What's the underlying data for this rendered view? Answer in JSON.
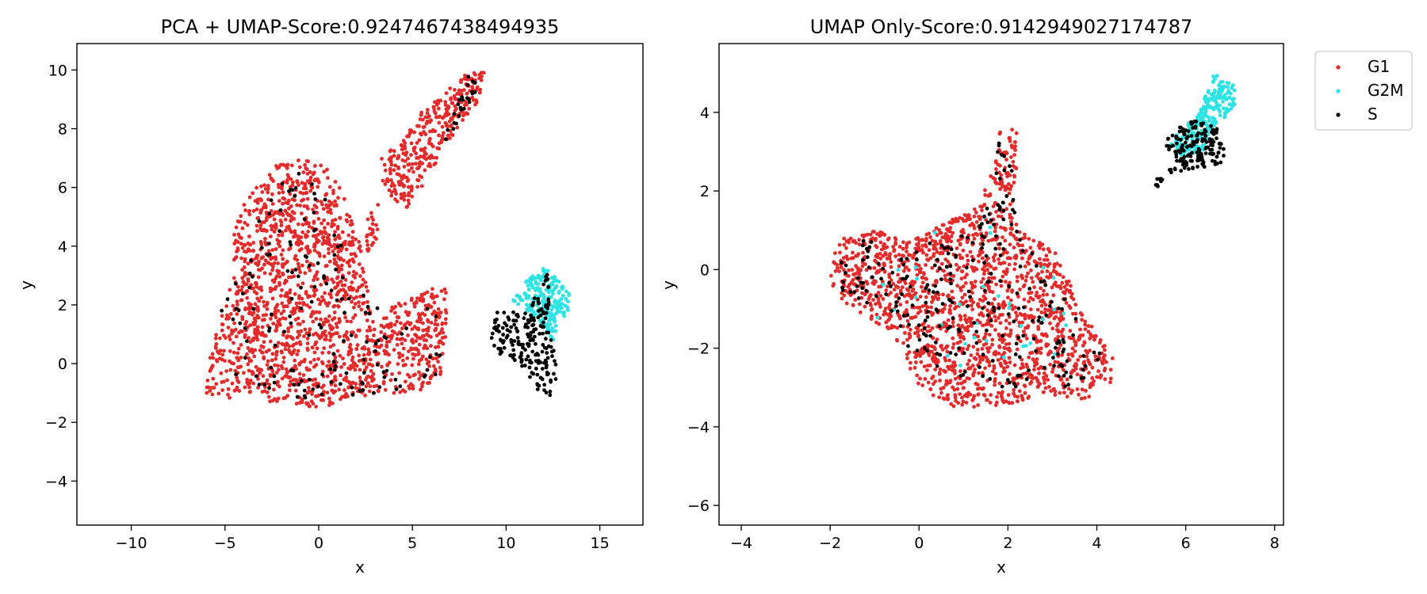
{
  "colors": {
    "G1": "#e42b2b",
    "G2M": "#2de3e3",
    "S": "#000000"
  },
  "legend": {
    "placement": "upper-right-outside",
    "items": [
      "G1",
      "G2M",
      "S"
    ]
  },
  "chart_data": [
    {
      "type": "scatter",
      "title": "PCA + UMAP-Score:0.9247467438494935",
      "xlabel": "x",
      "ylabel": "y",
      "xlim": [
        -12.9,
        17.3
      ],
      "ylim": [
        -5.5,
        10.9
      ],
      "xticks": [
        -10,
        -5,
        0,
        5,
        10,
        15
      ],
      "yticks": [
        -4,
        -2,
        0,
        2,
        4,
        6,
        8,
        10
      ],
      "xtick_labels": [
        "−10",
        "−5",
        "0",
        "5",
        "10",
        "15"
      ],
      "ytick_labels": [
        "−4",
        "−2",
        "0",
        "2",
        "4",
        "6",
        "8",
        "10"
      ],
      "grid": false,
      "series": [
        {
          "name": "G1",
          "color": "#e42b2b",
          "regions": [
            {
              "poly": [
                [
                  -6.0,
                  -1.0
                ],
                [
                  -5.7,
                  0.8
                ],
                [
                  -5.0,
                  2.0
                ],
                [
                  -4.6,
                  3.0
                ],
                [
                  -4.5,
                  4.5
                ],
                [
                  -4.0,
                  5.5
                ],
                [
                  -3.0,
                  6.3
                ],
                [
                  -2.0,
                  6.9
                ],
                [
                  -0.6,
                  7.0
                ],
                [
                  0.4,
                  6.7
                ],
                [
                  1.5,
                  5.6
                ],
                [
                  2.0,
                  4.6
                ],
                [
                  2.5,
                  3.2
                ],
                [
                  2.7,
                  2.0
                ],
                [
                  3.0,
                  1.2
                ],
                [
                  3.8,
                  1.9
                ],
                [
                  4.8,
                  2.2
                ],
                [
                  5.4,
                  2.3
                ],
                [
                  6.2,
                  2.7
                ],
                [
                  6.9,
                  2.7
                ],
                [
                  6.8,
                  1.0
                ],
                [
                  6.5,
                  -0.5
                ],
                [
                  5.6,
                  -0.9
                ],
                [
                  4.5,
                  -1.0
                ],
                [
                  3.0,
                  -1.3
                ],
                [
                  1.8,
                  -1.1
                ],
                [
                  0.3,
                  -1.55
                ],
                [
                  -1.0,
                  -1.4
                ],
                [
                  -2.5,
                  -1.3
                ],
                [
                  -4.5,
                  -1.2
                ],
                [
                  -5.8,
                  -1.15
                ]
              ],
              "n": 1650
            },
            {
              "poly": [
                [
                  3.4,
                  6.1
                ],
                [
                  3.3,
                  7.0
                ],
                [
                  4.5,
                  7.6
                ],
                [
                  5.5,
                  8.6
                ],
                [
                  7.2,
                  9.5
                ],
                [
                  8.0,
                  9.95
                ],
                [
                  8.9,
                  9.9
                ],
                [
                  8.6,
                  9.0
                ],
                [
                  7.5,
                  8.1
                ],
                [
                  6.5,
                  7.1
                ],
                [
                  5.5,
                  6.0
                ],
                [
                  4.6,
                  5.2
                ],
                [
                  3.9,
                  5.7
                ]
              ],
              "n": 320
            },
            {
              "poly": [
                [
                  2.3,
                  4.2
                ],
                [
                  2.8,
                  5.3
                ],
                [
                  3.3,
                  5.5
                ],
                [
                  3.1,
                  4.3
                ],
                [
                  2.7,
                  3.6
                ]
              ],
              "n": 25
            }
          ]
        },
        {
          "name": "G2M",
          "color": "#2de3e3",
          "regions": [
            {
              "poly": [
                [
                  10.2,
                  2.2
                ],
                [
                  11.0,
                  2.8
                ],
                [
                  11.8,
                  3.2
                ],
                [
                  12.4,
                  3.3
                ],
                [
                  12.9,
                  2.8
                ],
                [
                  13.4,
                  2.4
                ],
                [
                  13.3,
                  1.8
                ],
                [
                  12.9,
                  1.4
                ],
                [
                  12.5,
                  0.8
                ],
                [
                  12.0,
                  1.2
                ],
                [
                  11.4,
                  1.6
                ],
                [
                  10.6,
                  1.9
                ]
              ],
              "n": 220
            }
          ]
        },
        {
          "name": "S",
          "color": "#000000",
          "regions": [
            {
              "poly": [
                [
                  -5.2,
                  -0.8
                ],
                [
                  -5.2,
                  1.8
                ],
                [
                  -3.0,
                  5.5
                ],
                [
                  -1.2,
                  6.6
                ],
                [
                  0.6,
                  5.8
                ],
                [
                  2.2,
                  2.5
                ],
                [
                  3.8,
                  1.8
                ],
                [
                  6.4,
                  2.2
                ],
                [
                  6.5,
                  -0.5
                ],
                [
                  3.0,
                  -1.1
                ],
                [
                  0.0,
                  -1.3
                ],
                [
                  -3.5,
                  -1.0
                ]
              ],
              "n": 150
            },
            {
              "poly": [
                [
                  6.5,
                  7.4
                ],
                [
                  8.0,
                  9.8
                ],
                [
                  8.6,
                  9.5
                ],
                [
                  7.2,
                  8.0
                ]
              ],
              "n": 25
            },
            {
              "poly": [
                [
                  9.0,
                  0.6
                ],
                [
                  9.5,
                  1.8
                ],
                [
                  10.8,
                  1.8
                ],
                [
                  11.8,
                  2.5
                ],
                [
                  12.2,
                  3.3
                ],
                [
                  12.3,
                  2.3
                ],
                [
                  12.3,
                  1.4
                ],
                [
                  12.7,
                  0.6
                ],
                [
                  12.7,
                  -0.6
                ],
                [
                  12.5,
                  -1.1
                ],
                [
                  11.8,
                  -1.0
                ],
                [
                  11.2,
                  -0.4
                ],
                [
                  10.4,
                  0.1
                ],
                [
                  9.4,
                  0.2
                ]
              ],
              "n": 200
            }
          ]
        }
      ]
    },
    {
      "type": "scatter",
      "title": "UMAP Only-Score:0.9142949027174787",
      "xlabel": "x",
      "ylabel": "y",
      "xlim": [
        -4.5,
        8.2
      ],
      "ylim": [
        -6.5,
        5.75
      ],
      "xticks": [
        -4,
        -2,
        0,
        2,
        4,
        6,
        8
      ],
      "yticks": [
        -6,
        -4,
        -2,
        0,
        2,
        4
      ],
      "xtick_labels": [
        "−4",
        "−2",
        "0",
        "2",
        "4",
        "6",
        "8"
      ],
      "ytick_labels": [
        "−6",
        "−4",
        "−2",
        "0",
        "2",
        "4"
      ],
      "grid": false,
      "series": [
        {
          "name": "G1",
          "color": "#e42b2b",
          "regions": [
            {
              "poly": [
                [
                  -2.0,
                  0.1
                ],
                [
                  -1.8,
                  0.8
                ],
                [
                  -1.0,
                  1.0
                ],
                [
                  -0.2,
                  0.7
                ],
                [
                  0.6,
                  1.2
                ],
                [
                  1.3,
                  1.6
                ],
                [
                  1.6,
                  2.4
                ],
                [
                  1.8,
                  3.5
                ],
                [
                  2.2,
                  3.6
                ],
                [
                  2.2,
                  2.6
                ],
                [
                  2.1,
                  1.6
                ],
                [
                  2.4,
                  0.9
                ],
                [
                  3.3,
                  0.3
                ],
                [
                  3.5,
                  -0.7
                ],
                [
                  3.8,
                  -1.3
                ],
                [
                  4.4,
                  -2.3
                ],
                [
                  4.3,
                  -2.9
                ],
                [
                  3.8,
                  -3.3
                ],
                [
                  2.8,
                  -3.2
                ],
                [
                  1.8,
                  -3.5
                ],
                [
                  0.8,
                  -3.5
                ],
                [
                  0.0,
                  -3.0
                ],
                [
                  -0.6,
                  -1.6
                ],
                [
                  -1.6,
                  -0.9
                ],
                [
                  -2.0,
                  -0.5
                ]
              ],
              "n": 1700
            }
          ]
        },
        {
          "name": "G2M",
          "color": "#2de3e3",
          "regions": [
            {
              "poly": [
                [
                  5.6,
                  3.2
                ],
                [
                  6.3,
                  4.0
                ],
                [
                  6.6,
                  5.0
                ],
                [
                  7.1,
                  4.7
                ],
                [
                  7.1,
                  4.1
                ],
                [
                  6.6,
                  3.6
                ],
                [
                  6.4,
                  3.0
                ],
                [
                  5.9,
                  2.9
                ]
              ],
              "n": 240
            },
            {
              "poly": [
                [
                  -1.5,
                  -1.0
                ],
                [
                  -0.5,
                  0.9
                ],
                [
                  1.5,
                  1.8
                ],
                [
                  3.4,
                  0.4
                ],
                [
                  3.8,
                  -2.0
                ],
                [
                  2.0,
                  -3.0
                ],
                [
                  0.0,
                  -2.0
                ]
              ],
              "n": 35
            }
          ]
        },
        {
          "name": "S",
          "color": "#000000",
          "regions": [
            {
              "poly": [
                [
                  -2.0,
                  0.3
                ],
                [
                  -1.0,
                  0.9
                ],
                [
                  0.0,
                  0.6
                ],
                [
                  1.4,
                  1.2
                ],
                [
                  1.8,
                  3.4
                ],
                [
                  2.1,
                  2.8
                ],
                [
                  2.2,
                  1.0
                ],
                [
                  3.0,
                  -0.3
                ],
                [
                  4.2,
                  -2.2
                ],
                [
                  3.5,
                  -3.0
                ],
                [
                  1.6,
                  -3.0
                ],
                [
                  0.0,
                  -2.3
                ],
                [
                  -1.0,
                  -1.0
                ],
                [
                  -1.8,
                  -0.6
                ]
              ],
              "n": 260
            },
            {
              "poly": [
                [
                  5.1,
                  2.1
                ],
                [
                  5.4,
                  2.4
                ],
                [
                  6.0,
                  2.5
                ],
                [
                  6.8,
                  2.6
                ],
                [
                  6.9,
                  2.9
                ],
                [
                  6.7,
                  3.6
                ],
                [
                  6.2,
                  3.8
                ],
                [
                  5.8,
                  3.6
                ],
                [
                  5.5,
                  3.2
                ],
                [
                  5.8,
                  2.8
                ],
                [
                  5.3,
                  2.0
                ]
              ],
              "n": 170
            }
          ]
        }
      ]
    }
  ]
}
